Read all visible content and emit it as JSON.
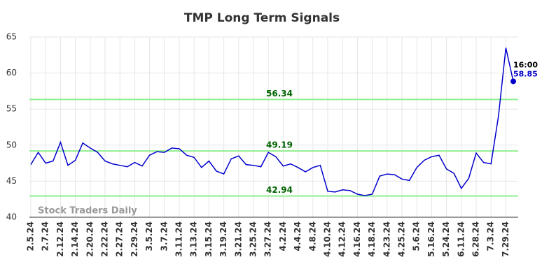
{
  "chart_data": {
    "type": "line",
    "title": "TMP Long Term Signals",
    "categories": [
      "2.5.24",
      null,
      "2.7.24",
      null,
      "2.12.24",
      null,
      "2.14.24",
      null,
      "2.20.24",
      null,
      "2.22.24",
      null,
      "2.27.24",
      null,
      "2.29.24",
      null,
      "3.5.24",
      null,
      "3.7.24",
      null,
      "3.11.24",
      null,
      "3.13.24",
      null,
      "3.15.24",
      null,
      "3.19.24",
      null,
      "3.21.24",
      null,
      "3.25.24",
      null,
      "3.27.24",
      null,
      "4.2.24",
      null,
      "4.4.24",
      null,
      "4.8.24",
      null,
      "4.10.24",
      null,
      "4.12.24",
      null,
      "4.16.24",
      null,
      "4.18.24",
      null,
      "4.23.24",
      null,
      "4.25.24",
      null,
      "5.6.24",
      null,
      "5.16.24",
      null,
      "5.24.24",
      null,
      "6.11.24",
      null,
      "6.28.24",
      null,
      "7.3.24",
      null,
      "7.29.24",
      null
    ],
    "series": [
      {
        "name": "TMP",
        "color": "#0000cc",
        "values": [
          47.3,
          49.0,
          47.5,
          47.8,
          50.4,
          47.2,
          47.9,
          50.3,
          49.6,
          49.0,
          47.8,
          47.4,
          47.2,
          47.0,
          47.6,
          47.1,
          48.6,
          49.1,
          49.0,
          49.6,
          49.5,
          48.6,
          48.3,
          46.9,
          47.8,
          46.4,
          46.0,
          48.1,
          48.5,
          47.3,
          47.2,
          47.0,
          49.0,
          48.4,
          47.1,
          47.4,
          46.9,
          46.3,
          46.9,
          47.2,
          43.6,
          43.5,
          43.8,
          43.7,
          43.2,
          43.0,
          43.2,
          45.7,
          46.0,
          45.9,
          45.3,
          45.1,
          46.9,
          47.9,
          48.4,
          48.6,
          46.7,
          46.1,
          44.0,
          45.4,
          48.9,
          47.6,
          47.4,
          54.0,
          63.5,
          58.85
        ]
      }
    ],
    "signal_lines": [
      56.34,
      49.19,
      42.94
    ],
    "signal_color": "#90ee90",
    "last_time": "16:00",
    "watermark": "Stock Traders Daily",
    "ylim": [
      40,
      65
    ],
    "yticks": [
      40,
      45,
      50,
      55,
      60,
      65
    ],
    "grid": true
  }
}
